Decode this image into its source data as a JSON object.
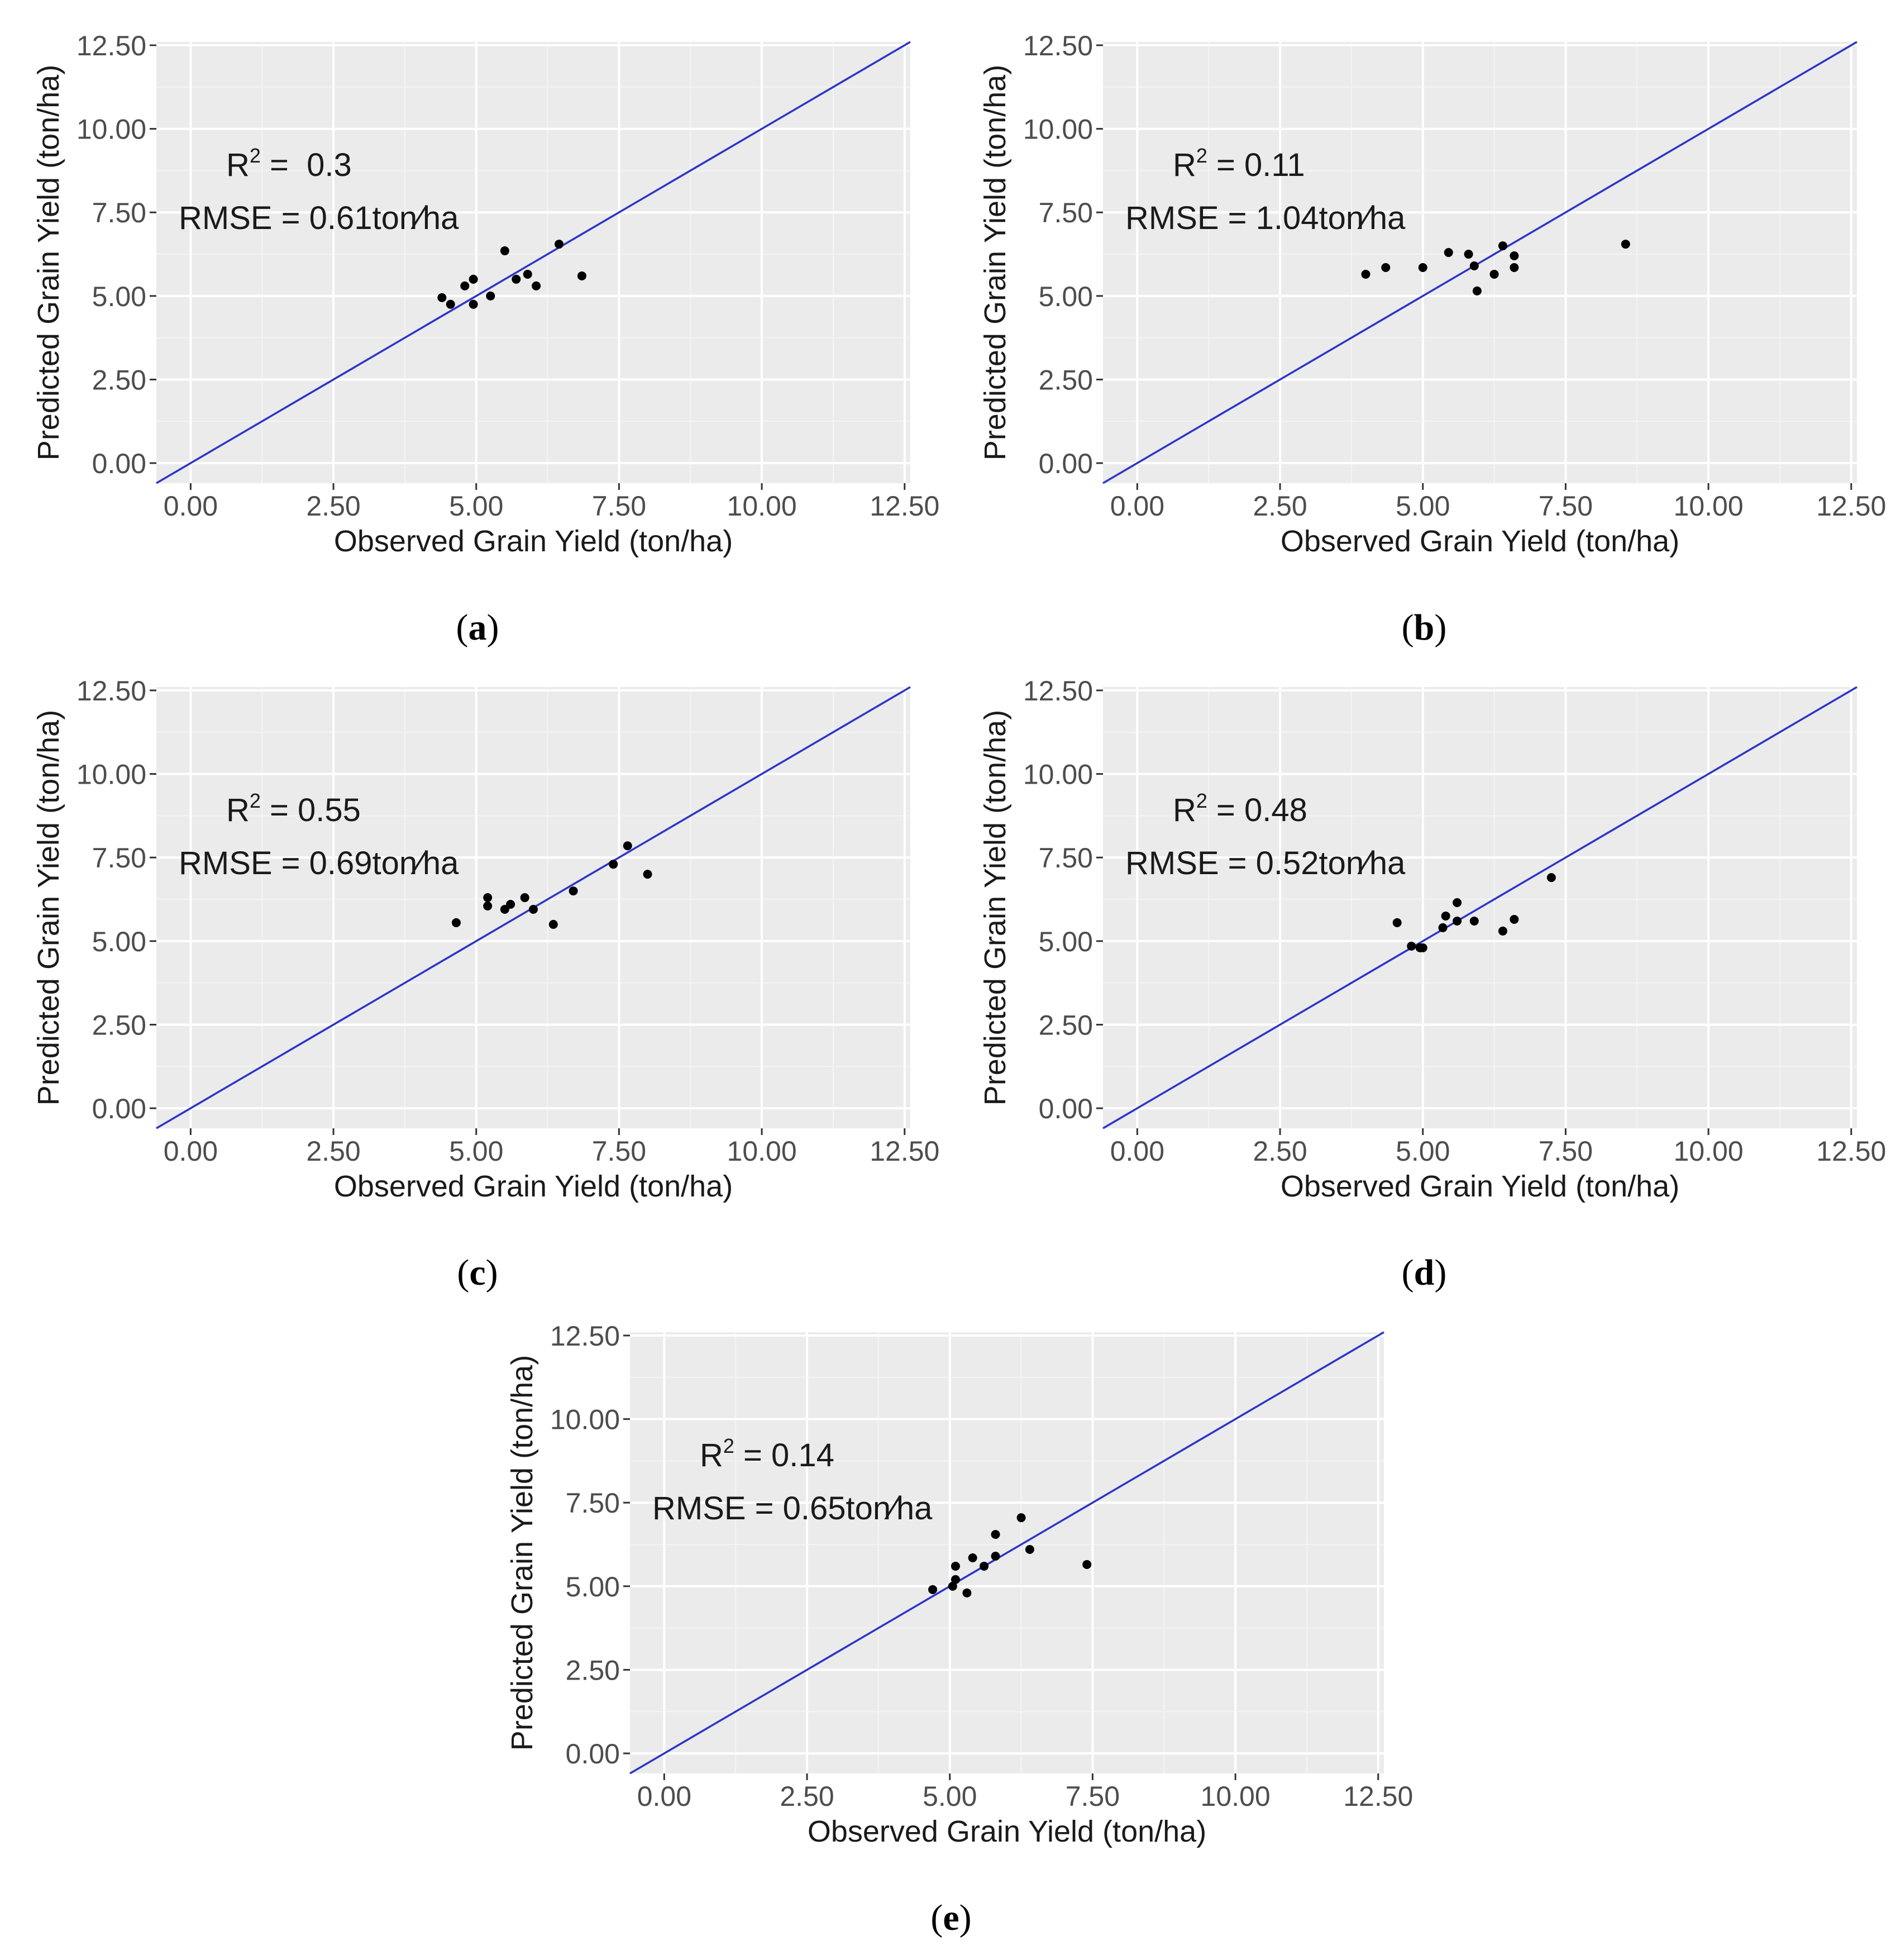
{
  "figure": {
    "colors": {
      "panel_bg": "#EBEBEB",
      "grid_major": "#FFFFFF",
      "grid_minor": "#F4F4F4",
      "identity_line": "#2B35C9",
      "points": "#000000",
      "ticks": "#333333"
    }
  },
  "chart_data": [
    {
      "type": "scatter",
      "panel": "a",
      "caption_letter": "a",
      "xlabel": "Observed Grain Yield (ton/ha)",
      "ylabel": "Predicted Grain Yield (ton/ha)",
      "xlim": [
        -0.6,
        12.6
      ],
      "ylim": [
        -0.6,
        12.6
      ],
      "ticks": [
        "0.00",
        "2.50",
        "5.00",
        "7.50",
        "10.00",
        "12.50"
      ],
      "tick_values": [
        0,
        2.5,
        5,
        7.5,
        10,
        12.5
      ],
      "identity_line": true,
      "r2_label": "R",
      "r2_sup": "2",
      "r2_value": " =  0.3",
      "rmse_label": "RMSE = 0.61ton∕ha",
      "points": [
        [
          4.4,
          4.95
        ],
        [
          4.55,
          4.75
        ],
        [
          4.8,
          5.3
        ],
        [
          4.95,
          5.5
        ],
        [
          4.95,
          4.75
        ],
        [
          5.25,
          5.0
        ],
        [
          5.5,
          6.35
        ],
        [
          5.7,
          5.5
        ],
        [
          5.9,
          5.65
        ],
        [
          6.05,
          5.3
        ],
        [
          6.45,
          6.55
        ],
        [
          6.85,
          5.6
        ]
      ]
    },
    {
      "type": "scatter",
      "panel": "b",
      "caption_letter": "b",
      "xlabel": "Observed Grain Yield (ton/ha)",
      "ylabel": "Predicted Grain Yield (ton/ha)",
      "xlim": [
        -0.6,
        12.6
      ],
      "ylim": [
        -0.6,
        12.6
      ],
      "ticks": [
        "0.00",
        "2.50",
        "5.00",
        "7.50",
        "10.00",
        "12.50"
      ],
      "tick_values": [
        0,
        2.5,
        5,
        7.5,
        10,
        12.5
      ],
      "identity_line": true,
      "r2_label": "R",
      "r2_sup": "2",
      "r2_value": " = 0.11",
      "rmse_label": "RMSE = 1.04ton∕ha",
      "points": [
        [
          4.0,
          5.65
        ],
        [
          4.35,
          5.85
        ],
        [
          5.0,
          5.85
        ],
        [
          5.45,
          6.3
        ],
        [
          5.8,
          6.25
        ],
        [
          5.9,
          5.9
        ],
        [
          5.95,
          5.15
        ],
        [
          6.25,
          5.65
        ],
        [
          6.4,
          6.5
        ],
        [
          6.6,
          6.2
        ],
        [
          6.6,
          5.85
        ],
        [
          8.55,
          6.55
        ]
      ]
    },
    {
      "type": "scatter",
      "panel": "c",
      "caption_letter": "c",
      "xlabel": "Observed Grain Yield (ton/ha)",
      "ylabel": "Predicted Grain Yield (ton/ha)",
      "xlim": [
        -0.6,
        12.6
      ],
      "ylim": [
        -0.6,
        12.6
      ],
      "ticks": [
        "0.00",
        "2.50",
        "5.00",
        "7.50",
        "10.00",
        "12.50"
      ],
      "tick_values": [
        0,
        2.5,
        5,
        7.5,
        10,
        12.5
      ],
      "identity_line": true,
      "r2_label": "R",
      "r2_sup": "2",
      "r2_value": " = 0.55",
      "rmse_label": "RMSE = 0.69ton∕ha",
      "points": [
        [
          4.65,
          5.55
        ],
        [
          5.2,
          6.3
        ],
        [
          5.2,
          6.05
        ],
        [
          5.5,
          5.95
        ],
        [
          5.6,
          6.1
        ],
        [
          5.85,
          6.3
        ],
        [
          6.0,
          5.95
        ],
        [
          6.35,
          5.5
        ],
        [
          6.7,
          6.5
        ],
        [
          7.4,
          7.3
        ],
        [
          7.65,
          7.85
        ],
        [
          8.0,
          7.0
        ]
      ]
    },
    {
      "type": "scatter",
      "panel": "d",
      "caption_letter": "d",
      "xlabel": "Observed Grain Yield (ton/ha)",
      "ylabel": "Predicted Grain Yield (ton/ha)",
      "xlim": [
        -0.6,
        12.6
      ],
      "ylim": [
        -0.6,
        12.6
      ],
      "ticks": [
        "0.00",
        "2.50",
        "5.00",
        "7.50",
        "10.00",
        "12.50"
      ],
      "tick_values": [
        0,
        2.5,
        5,
        7.5,
        10,
        12.5
      ],
      "identity_line": true,
      "r2_label": "R",
      "r2_sup": "2",
      "r2_value": " = 0.48",
      "rmse_label": "RMSE = 0.52ton∕ha",
      "points": [
        [
          4.55,
          5.55
        ],
        [
          4.8,
          4.85
        ],
        [
          4.95,
          4.8
        ],
        [
          5.0,
          4.8
        ],
        [
          5.35,
          5.4
        ],
        [
          5.4,
          5.75
        ],
        [
          5.6,
          6.15
        ],
        [
          5.6,
          5.6
        ],
        [
          5.9,
          5.6
        ],
        [
          6.4,
          5.3
        ],
        [
          6.6,
          5.65
        ],
        [
          7.25,
          6.9
        ]
      ]
    },
    {
      "type": "scatter",
      "panel": "e",
      "caption_letter": "e",
      "xlabel": "Observed Grain Yield (ton/ha)",
      "ylabel": "Predicted Grain Yield (ton/ha)",
      "xlim": [
        -0.6,
        12.6
      ],
      "ylim": [
        -0.6,
        12.6
      ],
      "ticks": [
        "0.00",
        "2.50",
        "5.00",
        "7.50",
        "10.00",
        "12.50"
      ],
      "tick_values": [
        0,
        2.5,
        5,
        7.5,
        10,
        12.5
      ],
      "identity_line": true,
      "r2_label": "R",
      "r2_sup": "2",
      "r2_value": " = 0.14",
      "rmse_label": "RMSE = 0.65ton∕ha",
      "points": [
        [
          4.7,
          4.9
        ],
        [
          5.05,
          5.0
        ],
        [
          5.1,
          5.6
        ],
        [
          5.1,
          5.2
        ],
        [
          5.3,
          4.8
        ],
        [
          5.4,
          5.85
        ],
        [
          5.6,
          5.6
        ],
        [
          5.8,
          6.55
        ],
        [
          5.8,
          5.9
        ],
        [
          6.25,
          7.05
        ],
        [
          6.4,
          6.1
        ],
        [
          7.4,
          5.65
        ]
      ]
    }
  ]
}
